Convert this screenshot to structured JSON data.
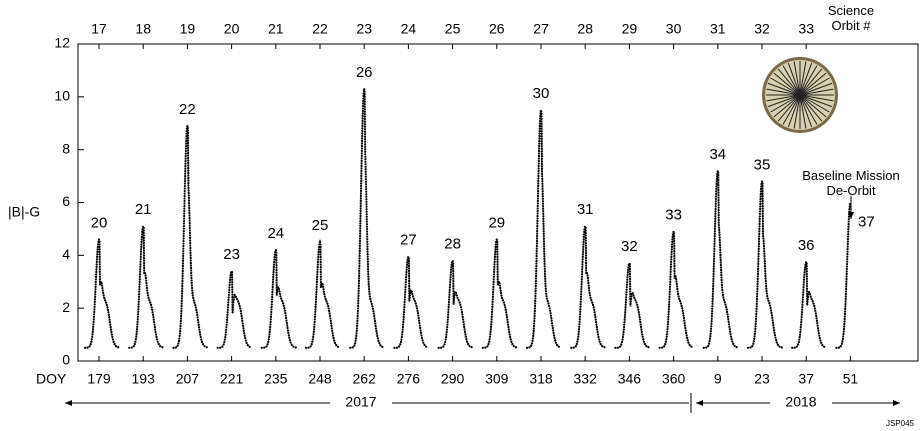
{
  "chart_data": {
    "type": "peaks",
    "y_label": "|B|-G",
    "x_label": "DOY",
    "ylim": [
      0,
      12
    ],
    "yticks": [
      0,
      2,
      4,
      6,
      8,
      10,
      12
    ],
    "categories": [
      "179",
      "193",
      "207",
      "221",
      "235",
      "248",
      "262",
      "276",
      "290",
      "309",
      "318",
      "332",
      "346",
      "360",
      "9",
      "23",
      "37",
      "51"
    ],
    "top_labels": [
      "17",
      "18",
      "19",
      "20",
      "21",
      "22",
      "23",
      "24",
      "25",
      "26",
      "27",
      "28",
      "29",
      "30",
      "31",
      "32",
      "33"
    ],
    "top_title": "Science Orbit #",
    "values": [
      4.6,
      5.1,
      8.9,
      3.4,
      4.2,
      4.5,
      10.3,
      3.95,
      3.8,
      4.6,
      9.5,
      5.1,
      3.7,
      4.9,
      7.2,
      6.8,
      3.75,
      6.0
    ],
    "orbits": [
      20,
      21,
      22,
      23,
      24,
      25,
      26,
      27,
      28,
      29,
      30,
      31,
      32,
      33,
      34,
      35,
      36,
      37
    ],
    "years": [
      "2017",
      "2018"
    ],
    "annotation": "Baseline Mission De-Orbit",
    "footnote": "JSP045",
    "color": "#000000"
  }
}
